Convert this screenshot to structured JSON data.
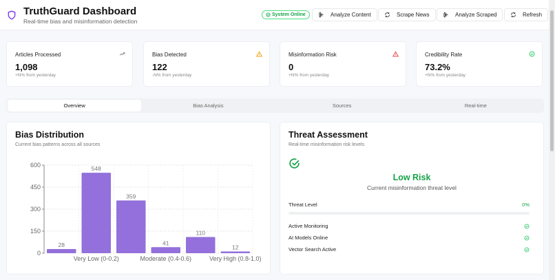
{
  "header": {
    "title": "TruthGuard Dashboard",
    "subtitle": "Real-time bias and misinformation detection",
    "status": "System Online",
    "buttons": [
      {
        "label": "Analyze Content",
        "icon": "brain-icon"
      },
      {
        "label": "Scrape News",
        "icon": "refresh-icon"
      },
      {
        "label": "Analyze Scraped",
        "icon": "brain-icon"
      },
      {
        "label": "Refresh",
        "icon": "refresh-icon"
      }
    ]
  },
  "stats": [
    {
      "label": "Articles Processed",
      "value": "1,098",
      "change": "+N% from yesterday",
      "icon": "trending-up-icon",
      "color": "#888888"
    },
    {
      "label": "Bias Detected",
      "value": "122",
      "change": "-N% from yesterday",
      "icon": "alert-triangle-icon",
      "color": "#f59e0b"
    },
    {
      "label": "Misinformation Risk",
      "value": "0",
      "change": "+N% from yesterday",
      "icon": "alert-triangle-icon",
      "color": "#ef4444"
    },
    {
      "label": "Credibility Rate",
      "value": "73.2%",
      "change": "+N% from yesterday",
      "icon": "check-circle-icon",
      "color": "#22c55e"
    }
  ],
  "tabs": [
    {
      "label": "Overview",
      "active": true
    },
    {
      "label": "Bias Analysis"
    },
    {
      "label": "Sources"
    },
    {
      "label": "Real-time"
    }
  ],
  "bias": {
    "title": "Bias Distribution",
    "subtitle": "Current bias patterns across all sources"
  },
  "chart_data": {
    "type": "bar",
    "categories": [
      "",
      "Very Low (0-0.2)",
      "",
      "Moderate (0.4-0.6)",
      "",
      "Very High (0.8-1.0)"
    ],
    "values": [
      28,
      548,
      359,
      41,
      110,
      12
    ],
    "ylim": [
      0,
      600
    ],
    "yticks": [
      0,
      150,
      300,
      450,
      600
    ],
    "grid": true,
    "color": "#9370db"
  },
  "threat": {
    "title": "Threat Assessment",
    "subtitle": "Real-time misinformation risk levels",
    "level": "Low Risk",
    "level_desc": "Current misinformation threat level",
    "threat_label": "Threat Level",
    "threat_value": "0%",
    "threat_fraction": 0,
    "accent": "#16a34a",
    "checks": [
      "Active Monitoring",
      "AI Models Online",
      "Vector Search Active"
    ]
  }
}
